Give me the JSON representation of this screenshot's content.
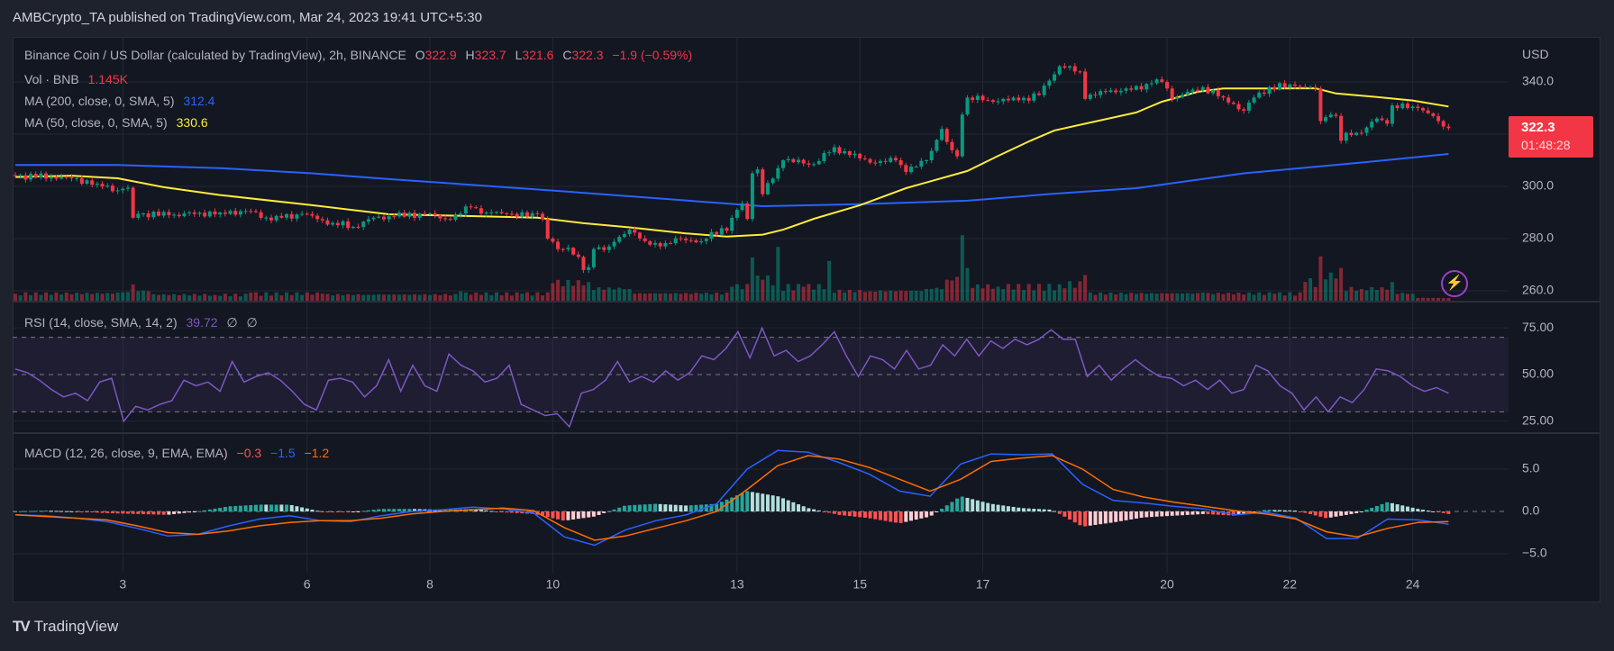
{
  "publisher_line": "AMBCrypto_TA published on TradingView.com, Mar 24, 2023 19:41 UTC+5:30",
  "legend": {
    "symbol": "Binance Coin / US Dollar (calculated by TradingView), 2h, BINANCE",
    "o_label": "O",
    "o": "322.9",
    "h_label": "H",
    "h": "323.7",
    "l_label": "L",
    "l": "321.6",
    "c_label": "C",
    "c": "322.3",
    "change": "−1.9 (−0.59%)",
    "vol_label": "Vol · BNB",
    "vol": "1.145K",
    "ma200_label": "MA (200, close, 0, SMA, 5)",
    "ma200": "312.4",
    "ma50_label": "MA (50, close, 0, SMA, 5)",
    "ma50": "330.6",
    "rsi_label": "RSI (14, close, SMA, 14, 2)",
    "rsi": "39.72",
    "rsi_extra1": "∅",
    "rsi_extra2": "∅",
    "macd_label": "MACD (12, 26, close, 9, EMA, EMA)",
    "macd_hist": "−0.3",
    "macd": "−1.5",
    "macd_signal": "−1.2"
  },
  "price_axis": {
    "currency": "USD",
    "ticks": [
      "340.0",
      "300.0",
      "280.0",
      "260.0"
    ]
  },
  "rsi_axis": {
    "ticks": [
      "75.00",
      "50.00",
      "25.00"
    ]
  },
  "macd_axis": {
    "ticks": [
      "5.0",
      "0.0",
      "−5.0"
    ]
  },
  "last_price": {
    "price": "322.3",
    "countdown": "01:48:28"
  },
  "footer": {
    "logo": "TV",
    "brand": "TradingView"
  },
  "colors": {
    "up": "#089981",
    "down": "#f23645",
    "ma200": "#2962ff",
    "ma50": "#ffeb3b",
    "rsi": "#7e57c2",
    "macd": "#2962ff",
    "signal": "#ff6d00",
    "background": "#131722"
  },
  "chart_data": {
    "type": "candlestick",
    "interval": "2h",
    "ylim": [
      256,
      350
    ],
    "grid": true,
    "x_ticks": [
      {
        "label": "3",
        "t": "03-03T00"
      },
      {
        "label": "6",
        "t": "03-06T00"
      },
      {
        "label": "8",
        "t": "03-08T00"
      },
      {
        "label": "10",
        "t": "03-10T00"
      },
      {
        "label": "13",
        "t": "03-13T00"
      },
      {
        "label": "15",
        "t": "03-15T00"
      },
      {
        "label": "17",
        "t": "03-17T00"
      },
      {
        "label": "20",
        "t": "03-20T00"
      },
      {
        "label": "22",
        "t": "03-22T00"
      },
      {
        "label": "24",
        "t": "03-24T00"
      }
    ],
    "close": [
      [
        "03-01T06",
        304
      ],
      [
        "03-02T02",
        303.5
      ],
      [
        "03-02T14",
        301
      ],
      [
        "03-02T22",
        298.5
      ],
      [
        "03-03T02",
        299.5
      ],
      [
        "03-03T04",
        288
      ],
      [
        "03-03T06",
        289.5
      ],
      [
        "03-03T18",
        289
      ],
      [
        "03-04T14",
        290
      ],
      [
        "03-05T02",
        290.5
      ],
      [
        "03-05T10",
        287
      ],
      [
        "03-05T14",
        288
      ],
      [
        "03-05T22",
        289.5
      ],
      [
        "03-06T06",
        287
      ],
      [
        "03-06T10",
        286
      ],
      [
        "03-06T18",
        284.5
      ],
      [
        "03-06T22",
        286.5
      ],
      [
        "03-07T02",
        288
      ],
      [
        "03-07T10",
        288.5
      ],
      [
        "03-07T22",
        289.5
      ],
      [
        "03-08T06",
        287.5
      ],
      [
        "03-08T10",
        289
      ],
      [
        "03-08T16",
        292
      ],
      [
        "03-08T22",
        290
      ],
      [
        "03-09T06",
        289.5
      ],
      [
        "03-09T14",
        288.5
      ],
      [
        "03-09T18",
        289.5
      ],
      [
        "03-09T20",
        287.5
      ],
      [
        "03-09T22",
        280
      ],
      [
        "03-10T02",
        276
      ],
      [
        "03-10T06",
        276.5
      ],
      [
        "03-10T10",
        273
      ],
      [
        "03-10T12",
        268
      ],
      [
        "03-10T14",
        269
      ],
      [
        "03-10T16",
        276
      ],
      [
        "03-10T22",
        277
      ],
      [
        "03-11T06",
        283.5
      ],
      [
        "03-11T12",
        279
      ],
      [
        "03-11T18",
        277
      ],
      [
        "03-12T02",
        280
      ],
      [
        "03-12T10",
        279
      ],
      [
        "03-12T18",
        284
      ],
      [
        "03-12T20",
        283
      ],
      [
        "03-13T00",
        291
      ],
      [
        "03-13T02",
        293.5
      ],
      [
        "03-13T04",
        287.5
      ],
      [
        "03-13T06",
        305
      ],
      [
        "03-13T08",
        306.5
      ],
      [
        "03-13T10",
        297
      ],
      [
        "03-13T14",
        303
      ],
      [
        "03-13T18",
        310
      ],
      [
        "03-14T06",
        308.5
      ],
      [
        "03-14T14",
        315
      ],
      [
        "03-14T20",
        312
      ],
      [
        "03-15T06",
        309
      ],
      [
        "03-15T14",
        310
      ],
      [
        "03-15T18",
        305.5
      ],
      [
        "03-16T02",
        310
      ],
      [
        "03-16T08",
        322
      ],
      [
        "03-16T10",
        317
      ],
      [
        "03-16T14",
        311.5
      ],
      [
        "03-16T16",
        327.5
      ],
      [
        "03-16T18",
        334
      ],
      [
        "03-17T02",
        333
      ],
      [
        "03-17T14",
        333
      ],
      [
        "03-17T22",
        335
      ],
      [
        "03-18T02",
        340.5
      ],
      [
        "03-18T06",
        346
      ],
      [
        "03-18T14",
        344
      ],
      [
        "03-18T16",
        333.5
      ],
      [
        "03-18T22",
        336.5
      ],
      [
        "03-19T10",
        337
      ],
      [
        "03-19T18",
        339.5
      ],
      [
        "03-19T22",
        340
      ],
      [
        "03-20T02",
        333.5
      ],
      [
        "03-20T10",
        337
      ],
      [
        "03-20T14",
        338
      ],
      [
        "03-20T22",
        334
      ],
      [
        "03-21T06",
        329
      ],
      [
        "03-21T10",
        334
      ],
      [
        "03-21T16",
        338
      ],
      [
        "03-22T02",
        338.5
      ],
      [
        "03-22T10",
        337.5
      ],
      [
        "03-22T12",
        325
      ],
      [
        "03-22T16",
        327.5
      ],
      [
        "03-22T18",
        327
      ],
      [
        "03-22T20",
        317.5
      ],
      [
        "03-22T22",
        320.5
      ],
      [
        "03-23T04",
        320.5
      ],
      [
        "03-23T10",
        326
      ],
      [
        "03-23T14",
        324
      ],
      [
        "03-23T16",
        331
      ],
      [
        "03-23T22",
        330
      ],
      [
        "03-24T02",
        330
      ],
      [
        "03-24T06",
        328
      ],
      [
        "03-24T10",
        325
      ],
      [
        "03-24T12",
        322.9
      ],
      [
        "03-24T14",
        322.3
      ]
    ],
    "volume_k": [
      [
        "03-01T06",
        3
      ],
      [
        "03-02T22",
        3.5
      ],
      [
        "03-03T04",
        7
      ],
      [
        "03-03T10",
        4
      ],
      [
        "03-04T12",
        2.5
      ],
      [
        "03-05T02",
        3.5
      ],
      [
        "03-06T06",
        3
      ],
      [
        "03-07T00",
        2.5
      ],
      [
        "03-08T12",
        4
      ],
      [
        "03-09T12",
        3
      ],
      [
        "03-10T00",
        7.5
      ],
      [
        "03-10T14",
        8
      ],
      [
        "03-11T06",
        5
      ],
      [
        "03-12T10",
        3
      ],
      [
        "03-12T22",
        6
      ],
      [
        "03-13T06",
        18.5
      ],
      [
        "03-13T10",
        9
      ],
      [
        "03-13T16",
        23
      ],
      [
        "03-14T02",
        6
      ],
      [
        "03-14T12",
        17
      ],
      [
        "03-15T04",
        4
      ],
      [
        "03-16T02",
        5
      ],
      [
        "03-16T10",
        9
      ],
      [
        "03-16T16",
        28
      ],
      [
        "03-16T18",
        14
      ],
      [
        "03-17T06",
        6
      ],
      [
        "03-18T06",
        7
      ],
      [
        "03-18T16",
        11
      ],
      [
        "03-19T12",
        3
      ],
      [
        "03-20T14",
        3.5
      ],
      [
        "03-21T18",
        3
      ],
      [
        "03-22T06",
        8
      ],
      [
        "03-22T12",
        19
      ],
      [
        "03-22T16",
        12
      ],
      [
        "03-22T20",
        14
      ],
      [
        "03-23T04",
        5
      ],
      [
        "03-23T16",
        8
      ],
      [
        "03-24T00",
        3
      ],
      [
        "03-24T14",
        1.145
      ]
    ],
    "ma200": [
      [
        "03-01T06",
        308.2
      ],
      [
        "03-02T22",
        308.2
      ],
      [
        "03-04T14",
        307
      ],
      [
        "03-06T02",
        305
      ],
      [
        "03-07T08",
        302.8
      ],
      [
        "03-10T00",
        298.4
      ],
      [
        "03-13T10",
        292.4
      ],
      [
        "03-15T00",
        293.2
      ],
      [
        "03-16T18",
        294.5
      ],
      [
        "03-18T04",
        297.2
      ],
      [
        "03-19T12",
        299.3
      ],
      [
        "03-21T06",
        305
      ],
      [
        "03-23T06",
        309.3
      ],
      [
        "03-24T14",
        312.4
      ]
    ],
    "ma50": [
      [
        "03-01T06",
        303.6
      ],
      [
        "03-02T04",
        304.1
      ],
      [
        "03-02T22",
        303.1
      ],
      [
        "03-03T16",
        299.7
      ],
      [
        "03-04T14",
        296.7
      ],
      [
        "03-06T02",
        292.8
      ],
      [
        "03-07T08",
        289.3
      ],
      [
        "03-08T18",
        288.6
      ],
      [
        "03-09T18",
        288
      ],
      [
        "03-10T12",
        285.9
      ],
      [
        "03-11T06",
        284.3
      ],
      [
        "03-12T04",
        282
      ],
      [
        "03-12T20",
        280.8
      ],
      [
        "03-13T10",
        281.5
      ],
      [
        "03-13T18",
        283.4
      ],
      [
        "03-14T06",
        287.6
      ],
      [
        "03-15T00",
        292.8
      ],
      [
        "03-15T18",
        299.3
      ],
      [
        "03-16T18",
        305.9
      ],
      [
        "03-17T06",
        311.7
      ],
      [
        "03-17T18",
        317.2
      ],
      [
        "03-18T04",
        321.4
      ],
      [
        "03-18T16",
        324
      ],
      [
        "03-19T12",
        328.3
      ],
      [
        "03-19T22",
        332.4
      ],
      [
        "03-20T12",
        336.2
      ],
      [
        "03-20T22",
        337.5
      ],
      [
        "03-21T18",
        337.5
      ],
      [
        "03-22T10",
        337.6
      ],
      [
        "03-22T18",
        335.6
      ],
      [
        "03-23T06",
        334.6
      ],
      [
        "03-24T00",
        332.9
      ],
      [
        "03-24T14",
        330.6
      ]
    ],
    "rsi": {
      "ylim": [
        20,
        80
      ],
      "upper_band": 70,
      "middle": 50,
      "lower_band": 30,
      "values": [
        53,
        51,
        47,
        42,
        38,
        40,
        36,
        46,
        48,
        25,
        33,
        31,
        34,
        36,
        47,
        44,
        46,
        41,
        57,
        46,
        49,
        51,
        47,
        41,
        34,
        31,
        47,
        48,
        46,
        38,
        44,
        58,
        41,
        55,
        44,
        41,
        61,
        55,
        52,
        46,
        48,
        55,
        34,
        31,
        28,
        29,
        22,
        40,
        42,
        47,
        57,
        46,
        49,
        46,
        52,
        47,
        51,
        60,
        58,
        64,
        73,
        59,
        75,
        60,
        63,
        57,
        60,
        66,
        73,
        60,
        49,
        60,
        58,
        53,
        63,
        53,
        55,
        66,
        60,
        69,
        60,
        68,
        64,
        69,
        66,
        69,
        74,
        69,
        69,
        49,
        55,
        47,
        53,
        58,
        53,
        49,
        48,
        44,
        47,
        42,
        47,
        40,
        42,
        55,
        52,
        44,
        40,
        31,
        38,
        30,
        38,
        35,
        42,
        53,
        52,
        49,
        44,
        41,
        43,
        40
      ]
    },
    "macd": {
      "ylim": [
        -6.5,
        8
      ],
      "macd": [
        -0.4,
        -0.5,
        -0.8,
        -1.2,
        -2.0,
        -2.9,
        -2.7,
        -1.7,
        -0.9,
        -0.5,
        -1.1,
        -1.2,
        -0.5,
        0.0,
        0.2,
        0.5,
        0.3,
        -0.2,
        -3.0,
        -4.0,
        -2.2,
        -1.1,
        -0.4,
        0.9,
        5.0,
        7.2,
        7.0,
        5.8,
        4.4,
        2.4,
        1.8,
        5.6,
        6.8,
        6.7,
        6.8,
        3.2,
        1.3,
        1.0,
        0.6,
        0.3,
        -0.4,
        -0.1,
        -0.8,
        -3.2,
        -3.2,
        -0.9,
        -1.0,
        -1.5
      ],
      "signal": [
        -0.4,
        -0.6,
        -0.8,
        -1.0,
        -1.7,
        -2.5,
        -2.7,
        -2.3,
        -1.7,
        -1.3,
        -1.1,
        -1.1,
        -0.8,
        -0.3,
        0.0,
        0.2,
        0.4,
        0.1,
        -1.9,
        -3.4,
        -2.9,
        -2.0,
        -1.1,
        0.0,
        2.6,
        5.4,
        6.6,
        6.2,
        5.2,
        3.8,
        2.4,
        3.8,
        5.9,
        6.3,
        6.6,
        5.0,
        2.6,
        1.7,
        1.1,
        0.6,
        0.1,
        -0.3,
        -0.9,
        -2.4,
        -3.0,
        -2.0,
        -1.3,
        -1.2
      ]
    }
  }
}
